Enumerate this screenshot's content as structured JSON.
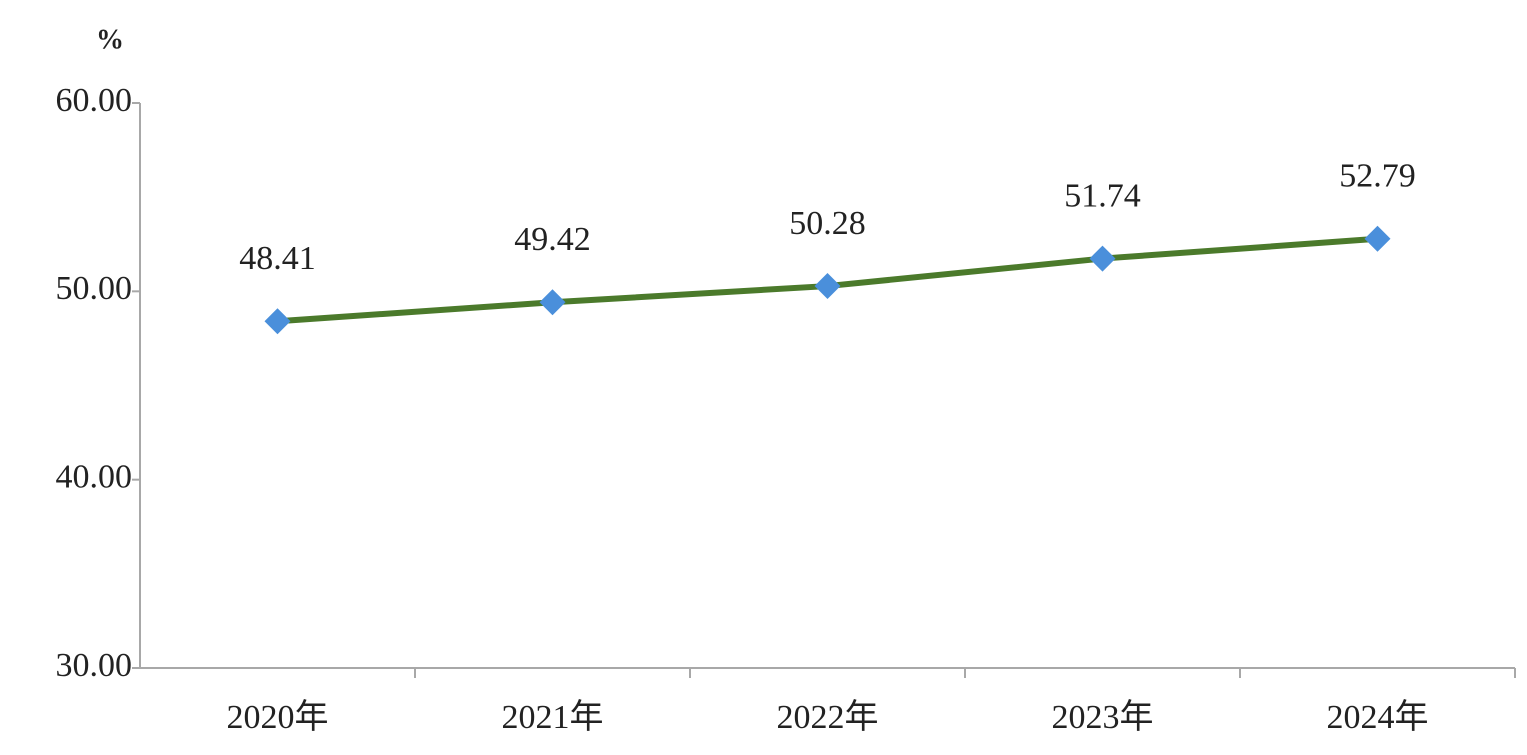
{
  "chart_data": {
    "type": "line",
    "y_unit": "%",
    "categories": [
      "2020年",
      "2021年",
      "2022年",
      "2023年",
      "2024年"
    ],
    "values": [
      48.41,
      49.42,
      50.28,
      51.74,
      52.79
    ],
    "color": "#4b7a2b",
    "marker_color": "#4a8fdb",
    "ylim": [
      30,
      60
    ],
    "yticks": [
      {
        "value": 30,
        "label": "30.00"
      },
      {
        "value": 40,
        "label": "40.00"
      },
      {
        "value": 50,
        "label": "50.00"
      },
      {
        "value": 60,
        "label": "60.00"
      }
    ],
    "grid": false
  }
}
